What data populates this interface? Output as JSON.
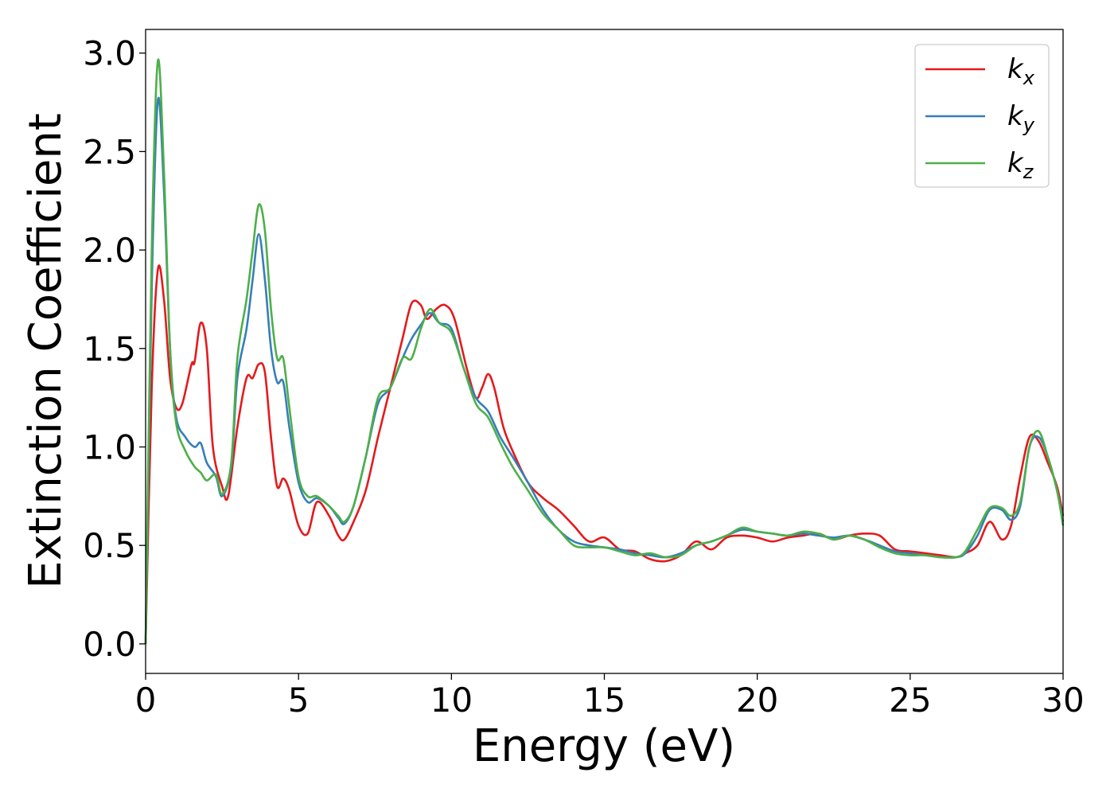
{
  "chart_data": {
    "type": "line",
    "title": "",
    "xlabel": "Energy (eV)",
    "ylabel": "Extinction Coefficient",
    "xlim": [
      0,
      30
    ],
    "ylim": [
      -0.15,
      3.12
    ],
    "xticks": [
      0,
      5,
      10,
      15,
      20,
      25,
      30
    ],
    "xtick_labels": [
      "0",
      "5",
      "10",
      "15",
      "20",
      "25",
      "30"
    ],
    "yticks": [
      0.0,
      0.5,
      1.0,
      1.5,
      2.0,
      2.5,
      3.0
    ],
    "ytick_labels": [
      "0.0",
      "0.5",
      "1.0",
      "1.5",
      "2.0",
      "2.5",
      "3.0"
    ],
    "grid": false,
    "legend_position": "top-right",
    "series": [
      {
        "name": "kx",
        "label_base": "k",
        "label_sub": "x",
        "color": "#e41a1c",
        "x": [
          0,
          0.2,
          0.4,
          0.6,
          0.8,
          1.0,
          1.2,
          1.5,
          1.6,
          1.8,
          2.0,
          2.2,
          2.5,
          2.7,
          3.0,
          3.3,
          3.5,
          3.7,
          3.9,
          4.1,
          4.3,
          4.5,
          4.7,
          5.0,
          5.3,
          5.6,
          6.0,
          6.3,
          6.5,
          6.8,
          7.2,
          7.6,
          8.0,
          8.4,
          8.7,
          9.0,
          9.2,
          9.5,
          9.8,
          10.1,
          10.5,
          10.8,
          11.0,
          11.2,
          11.4,
          11.7,
          12.0,
          12.5,
          13.0,
          13.5,
          14.0,
          14.5,
          15.0,
          15.5,
          16.0,
          16.5,
          17.0,
          17.5,
          18.0,
          18.5,
          19.0,
          19.5,
          20.0,
          20.5,
          21.0,
          21.5,
          22.0,
          22.5,
          23.0,
          23.5,
          24.0,
          24.5,
          25.0,
          25.5,
          26.0,
          26.5,
          26.8,
          27.2,
          27.6,
          28.0,
          28.3,
          28.6,
          28.9,
          29.2,
          29.5,
          29.8,
          30.0
        ],
        "y": [
          0.0,
          1.3,
          1.9,
          1.75,
          1.35,
          1.2,
          1.22,
          1.42,
          1.43,
          1.63,
          1.5,
          1.0,
          0.8,
          0.75,
          1.1,
          1.35,
          1.35,
          1.42,
          1.38,
          1.05,
          0.8,
          0.84,
          0.78,
          0.6,
          0.56,
          0.72,
          0.65,
          0.55,
          0.53,
          0.62,
          0.78,
          1.05,
          1.3,
          1.55,
          1.73,
          1.72,
          1.65,
          1.7,
          1.72,
          1.65,
          1.4,
          1.25,
          1.3,
          1.37,
          1.3,
          1.1,
          0.98,
          0.82,
          0.74,
          0.68,
          0.6,
          0.52,
          0.54,
          0.48,
          0.47,
          0.43,
          0.42,
          0.45,
          0.52,
          0.48,
          0.54,
          0.55,
          0.54,
          0.52,
          0.54,
          0.55,
          0.56,
          0.53,
          0.55,
          0.56,
          0.55,
          0.48,
          0.47,
          0.46,
          0.45,
          0.44,
          0.46,
          0.5,
          0.62,
          0.53,
          0.6,
          0.85,
          1.05,
          1.03,
          0.92,
          0.8,
          0.65
        ]
      },
      {
        "name": "ky",
        "label_base": "k",
        "label_sub": "y",
        "color": "#377eb8",
        "x": [
          0,
          0.2,
          0.4,
          0.6,
          0.8,
          1.0,
          1.3,
          1.6,
          1.8,
          2.0,
          2.3,
          2.5,
          2.8,
          3.0,
          3.3,
          3.5,
          3.7,
          3.9,
          4.1,
          4.3,
          4.5,
          4.7,
          5.0,
          5.3,
          5.6,
          6.0,
          6.3,
          6.5,
          6.8,
          7.2,
          7.6,
          8.0,
          8.4,
          8.7,
          9.0,
          9.3,
          9.6,
          10.0,
          10.4,
          10.8,
          11.2,
          11.6,
          12.0,
          12.5,
          13.0,
          13.5,
          14.0,
          14.5,
          15.0,
          15.5,
          16.0,
          16.5,
          17.0,
          17.5,
          18.0,
          18.5,
          19.0,
          19.5,
          20.0,
          20.5,
          21.0,
          21.5,
          22.0,
          22.5,
          23.0,
          23.5,
          24.0,
          24.5,
          25.0,
          25.5,
          26.0,
          26.5,
          26.8,
          27.2,
          27.6,
          28.0,
          28.3,
          28.6,
          28.9,
          29.2,
          29.5,
          29.8,
          30.0
        ],
        "y": [
          0.0,
          1.8,
          2.76,
          2.3,
          1.5,
          1.15,
          1.05,
          1.0,
          1.02,
          0.92,
          0.85,
          0.75,
          0.9,
          1.35,
          1.6,
          1.85,
          2.08,
          1.85,
          1.5,
          1.33,
          1.33,
          1.1,
          0.82,
          0.72,
          0.74,
          0.7,
          0.64,
          0.61,
          0.7,
          0.95,
          1.22,
          1.3,
          1.45,
          1.55,
          1.62,
          1.68,
          1.63,
          1.6,
          1.4,
          1.25,
          1.18,
          1.05,
          0.95,
          0.82,
          0.68,
          0.58,
          0.52,
          0.5,
          0.49,
          0.48,
          0.46,
          0.45,
          0.44,
          0.46,
          0.5,
          0.52,
          0.55,
          0.58,
          0.57,
          0.56,
          0.55,
          0.56,
          0.55,
          0.54,
          0.55,
          0.53,
          0.5,
          0.47,
          0.46,
          0.45,
          0.44,
          0.44,
          0.46,
          0.55,
          0.68,
          0.68,
          0.63,
          0.7,
          1.0,
          1.05,
          0.95,
          0.78,
          0.62
        ]
      },
      {
        "name": "kz",
        "label_base": "k",
        "label_sub": "z",
        "color": "#4daf4a",
        "x": [
          0,
          0.2,
          0.4,
          0.6,
          0.8,
          1.0,
          1.3,
          1.6,
          1.8,
          2.0,
          2.3,
          2.5,
          2.8,
          3.0,
          3.3,
          3.5,
          3.7,
          3.9,
          4.1,
          4.3,
          4.5,
          4.7,
          5.0,
          5.3,
          5.6,
          6.0,
          6.3,
          6.5,
          6.8,
          7.2,
          7.6,
          8.0,
          8.4,
          8.7,
          9.0,
          9.3,
          9.6,
          10.0,
          10.4,
          10.8,
          11.2,
          11.6,
          12.0,
          12.5,
          13.0,
          13.5,
          14.0,
          14.5,
          15.0,
          15.5,
          16.0,
          16.5,
          17.0,
          17.5,
          18.0,
          18.5,
          19.0,
          19.5,
          20.0,
          20.5,
          21.0,
          21.5,
          22.0,
          22.5,
          23.0,
          23.5,
          24.0,
          24.5,
          25.0,
          25.5,
          26.0,
          26.5,
          26.8,
          27.2,
          27.6,
          28.0,
          28.3,
          28.6,
          28.9,
          29.2,
          29.5,
          29.8,
          30.0
        ],
        "y": [
          0.0,
          2.0,
          2.96,
          2.4,
          1.5,
          1.12,
          0.98,
          0.9,
          0.87,
          0.83,
          0.86,
          0.76,
          0.92,
          1.45,
          1.75,
          2.0,
          2.23,
          2.1,
          1.7,
          1.45,
          1.45,
          1.2,
          0.85,
          0.75,
          0.75,
          0.7,
          0.65,
          0.62,
          0.7,
          0.95,
          1.25,
          1.3,
          1.45,
          1.45,
          1.6,
          1.7,
          1.63,
          1.58,
          1.4,
          1.22,
          1.15,
          1.02,
          0.9,
          0.78,
          0.66,
          0.58,
          0.5,
          0.49,
          0.49,
          0.47,
          0.45,
          0.46,
          0.44,
          0.45,
          0.5,
          0.52,
          0.55,
          0.59,
          0.57,
          0.56,
          0.55,
          0.57,
          0.56,
          0.53,
          0.55,
          0.53,
          0.49,
          0.46,
          0.45,
          0.45,
          0.44,
          0.44,
          0.47,
          0.58,
          0.69,
          0.69,
          0.65,
          0.72,
          1.0,
          1.08,
          0.95,
          0.78,
          0.6
        ]
      }
    ]
  }
}
